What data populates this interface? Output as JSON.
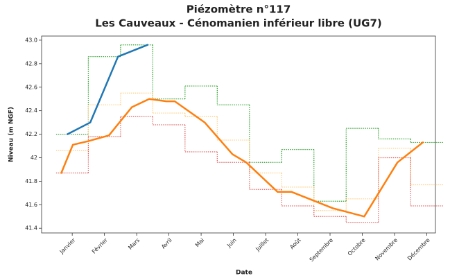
{
  "chart_data": {
    "type": "line",
    "title": "Piézomètre n°117",
    "subtitle": "Les Cauveaux - Cénomanien inférieur libre (UG7)",
    "xlabel": "Date",
    "ylabel": "Niveau (m NGF)",
    "xlim": [
      0.05,
      12.27
    ],
    "xticks": [
      {
        "value": 1,
        "label": "Janvier"
      },
      {
        "value": 2,
        "label": "Février"
      },
      {
        "value": 3,
        "label": "Mars"
      },
      {
        "value": 4,
        "label": "Avril"
      },
      {
        "value": 5,
        "label": "Mai"
      },
      {
        "value": 6,
        "label": "Juin"
      },
      {
        "value": 7,
        "label": "Juillet"
      },
      {
        "value": 8,
        "label": "Août"
      },
      {
        "value": 9,
        "label": "Septembre"
      },
      {
        "value": 10,
        "label": "Octobre"
      },
      {
        "value": 11,
        "label": "Novembre"
      },
      {
        "value": 12,
        "label": "Décembre"
      }
    ],
    "ylim": [
      41.36,
      43.035
    ],
    "yticks": [
      41.4,
      41.6,
      41.8,
      42.0,
      42.2,
      42.4,
      42.6,
      42.8,
      {
        "value": 43.0,
        "label": "43.0"
      }
    ],
    "grid": false,
    "series": [
      {
        "color": "#2ca02c",
        "step": true,
        "dotted": true,
        "x": [
          1,
          2,
          3,
          4,
          5,
          6,
          7,
          8,
          9,
          10,
          11,
          12
        ],
        "values": [
          42.2,
          42.86,
          42.96,
          42.5,
          42.61,
          42.45,
          41.96,
          42.07,
          41.63,
          42.25,
          42.16,
          42.13
        ]
      },
      {
        "color": "#ffcc80",
        "step": true,
        "dotted": true,
        "x": [
          1,
          2,
          3,
          4,
          5,
          6,
          7,
          8,
          9,
          10,
          11,
          12
        ],
        "values": [
          42.06,
          42.45,
          42.55,
          42.38,
          42.35,
          42.15,
          41.87,
          41.75,
          41.55,
          41.65,
          42.08,
          41.77
        ]
      },
      {
        "color": "#e06060",
        "step": true,
        "dotted": true,
        "x": [
          1,
          2,
          3,
          4,
          5,
          6,
          7,
          8,
          9,
          10,
          11,
          12
        ],
        "values": [
          41.87,
          42.18,
          42.35,
          42.28,
          42.05,
          41.96,
          41.73,
          41.59,
          41.5,
          41.45,
          42.0,
          41.59
        ]
      },
      {
        "color": "#ff7f0e",
        "step": false,
        "dotted": false,
        "x": [
          0.66,
          1.02,
          1.49,
          2.14,
          2.85,
          3.39,
          3.92,
          4.18,
          5.11,
          5.97,
          6.4,
          7.37,
          7.8,
          9.09,
          10.06,
          11.09,
          11.88
        ],
        "values": [
          41.87,
          42.11,
          42.14,
          42.19,
          42.43,
          42.5,
          42.48,
          42.48,
          42.3,
          42.03,
          41.96,
          41.71,
          41.71,
          41.57,
          41.5,
          41.96,
          42.13
        ]
      },
      {
        "color": "#1f77b4",
        "step": false,
        "dotted": false,
        "x": [
          0.85,
          1.56,
          2.42,
          3.34
        ],
        "values": [
          42.2,
          42.3,
          42.86,
          42.96
        ]
      }
    ]
  }
}
